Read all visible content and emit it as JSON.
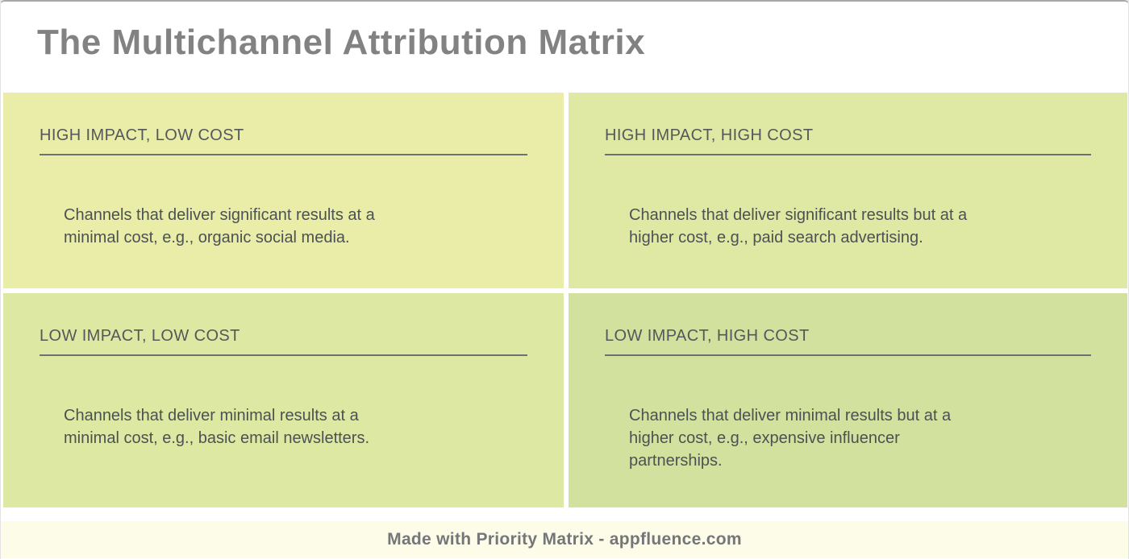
{
  "page": {
    "title": "The Multichannel Attribution Matrix"
  },
  "quadrants": [
    {
      "key": "high-impact-low-cost",
      "title": "HIGH IMPACT, LOW COST",
      "description": "Channels that deliver significant results at a\nminimal cost, e.g., organic social media.",
      "bg": "#e9eda8"
    },
    {
      "key": "high-impact-high-cost",
      "title": "HIGH IMPACT, HIGH COST",
      "description": "Channels that deliver significant results but at a\nhigher cost, e.g., paid search advertising.",
      "bg": "#dfe9a4"
    },
    {
      "key": "low-impact-low-cost",
      "title": "LOW IMPACT, LOW COST",
      "description": "Channels that deliver minimal results at a\nminimal cost, e.g., basic email newsletters.",
      "bg": "#dde8a3"
    },
    {
      "key": "low-impact-high-cost",
      "title": "LOW IMPACT, HIGH COST",
      "description": "Channels that deliver minimal results but at a\nhigher cost, e.g., expensive influencer\npartnerships.",
      "bg": "#d3e19f"
    }
  ],
  "footer": {
    "text": "Made with Priority Matrix - appfluence.com"
  },
  "colors": {
    "page_bg": "#ffffff",
    "top_border": "#a7a7a7",
    "title_text": "#828282",
    "quadrant_heading_text": "#54585a",
    "quadrant_body_text": "#4c5153",
    "quadrant_underline": "#6d7173",
    "footer_bg": "#fcfce8",
    "footer_text": "#747679"
  }
}
